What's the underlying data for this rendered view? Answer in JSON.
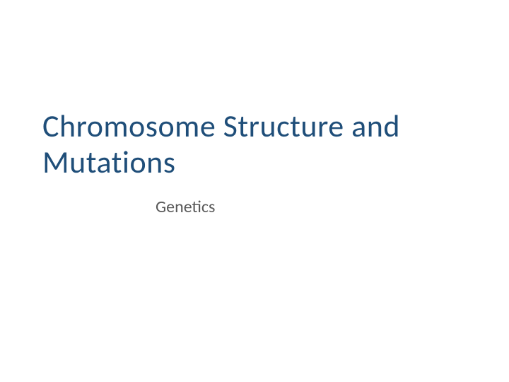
{
  "slide": {
    "title": "Chromosome Structure and Mutations",
    "subtitle": "Genetics",
    "title_color": "#1f4e79",
    "subtitle_color": "#595959",
    "background_color": "#ffffff",
    "title_fontsize": 44,
    "subtitle_fontsize": 24
  }
}
